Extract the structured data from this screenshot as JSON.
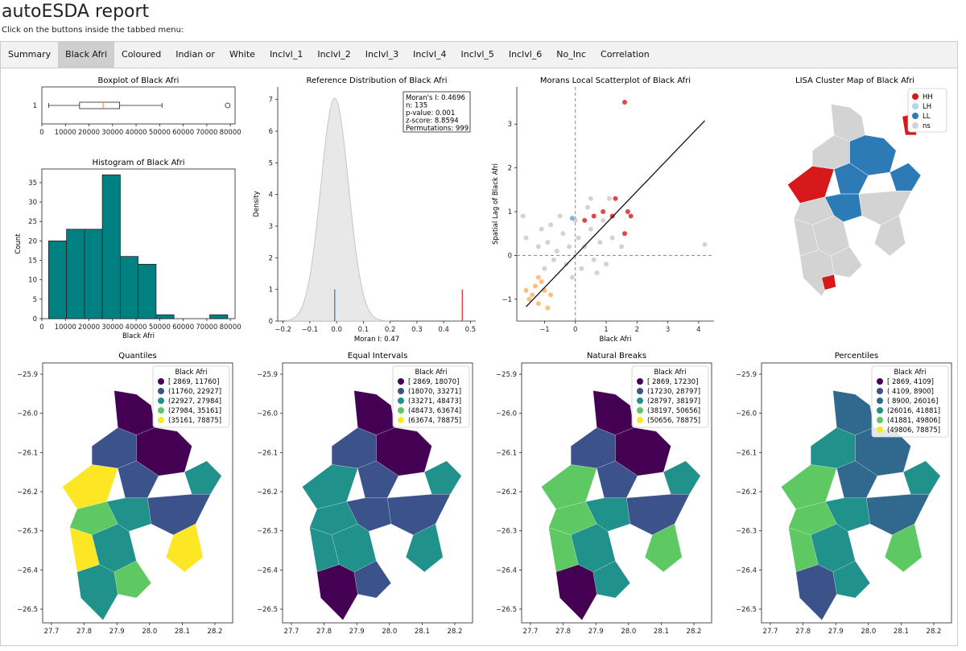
{
  "page": {
    "title": "autoESDA report",
    "subtitle": "Click on the buttons inside the tabbed menu:"
  },
  "tabs": [
    {
      "label": "Summary",
      "active": false
    },
    {
      "label": "Black Afri",
      "active": true
    },
    {
      "label": "Coloured",
      "active": false
    },
    {
      "label": "Indian or",
      "active": false
    },
    {
      "label": "White",
      "active": false
    },
    {
      "label": "Inclvl_1",
      "active": false
    },
    {
      "label": "Inclvl_2",
      "active": false
    },
    {
      "label": "Inclvl_3",
      "active": false
    },
    {
      "label": "Inclvl_4",
      "active": false
    },
    {
      "label": "Inclvl_5",
      "active": false
    },
    {
      "label": "Inclvl_6",
      "active": false
    },
    {
      "label": "No_Inc",
      "active": false
    },
    {
      "label": "Correlation",
      "active": false
    }
  ],
  "colors": {
    "teal": "#008080",
    "hh": "#d7191c",
    "lh": "#abd9e9",
    "ll": "#2c7bb6",
    "ns": "#d3d3d3",
    "viridis": [
      "#440154",
      "#3b528b",
      "#21918c",
      "#5ec962",
      "#fde725"
    ]
  },
  "chart_data": [
    {
      "type": "boxplot",
      "title": "Boxplot of Black Afri",
      "ytick": "1",
      "xticks": [
        "0",
        "10000",
        "20000",
        "30000",
        "40000",
        "50000",
        "60000",
        "70000",
        "80000"
      ],
      "xlim": [
        0,
        82000
      ],
      "stats": {
        "min": 2869,
        "q1": 16000,
        "median": 26000,
        "q3": 33000,
        "max": 51000,
        "outliers": [
          78875
        ]
      }
    },
    {
      "type": "histogram",
      "title": "Histogram of Black Afri",
      "xlabel": "Black Afri",
      "ylabel": "Count",
      "xticks": [
        "0",
        "10000",
        "20000",
        "30000",
        "40000",
        "50000",
        "60000",
        "70000",
        "80000"
      ],
      "yticks": [
        "0",
        "5",
        "10",
        "15",
        "20",
        "25",
        "30",
        "35"
      ],
      "xlim": [
        0,
        82000
      ],
      "ylim": [
        0,
        38.5
      ],
      "bins": [
        2869,
        10470,
        18070,
        25671,
        33271,
        40872,
        48473,
        56073,
        63674,
        71274,
        78875
      ],
      "counts": [
        20,
        23,
        23,
        37,
        16,
        14,
        1,
        0,
        0,
        1
      ]
    },
    {
      "type": "kde",
      "title": "Reference Distribution of Black Afri",
      "xlabel": "Moran I: 0.47",
      "ylabel": "Density",
      "xticks": [
        "−0.2",
        "−0.1",
        "0.0",
        "0.1",
        "0.2",
        "0.3",
        "0.4",
        "0.5"
      ],
      "yticks": [
        "0",
        "1",
        "2",
        "3",
        "4",
        "5",
        "6",
        "7"
      ],
      "xlim": [
        -0.22,
        0.52
      ],
      "ylim": [
        0,
        7.4
      ],
      "peak": 7.05,
      "sim_mean": -0.007,
      "observed": 0.4696,
      "stats_box": [
        "Moran's I: 0.4696",
        "n: 135",
        "p-value: 0.001",
        "z-score: 8.8594",
        "Permutations: 999"
      ]
    },
    {
      "type": "scatter",
      "title": "Morans Local Scatterplot of Black Afri",
      "xlabel": "Black Afri",
      "ylabel": "Spatial Lag of Black Afri",
      "xticks": [
        "−1",
        "0",
        "1",
        "2",
        "3",
        "4"
      ],
      "xtick_values": [
        -1,
        0,
        1,
        2,
        3,
        4
      ],
      "yticks": [
        "−1",
        "0",
        "1",
        "2",
        "3"
      ],
      "ytick_values": [
        -1,
        0,
        1,
        2,
        3
      ],
      "xlim": [
        -1.9,
        4.5
      ],
      "ylim": [
        -1.5,
        3.85
      ],
      "slope": 0.47,
      "points_ns": [
        [
          -0.9,
          0.3
        ],
        [
          -0.6,
          0.1
        ],
        [
          -0.4,
          0.5
        ],
        [
          -0.2,
          0.2
        ],
        [
          0.1,
          0.4
        ],
        [
          0.3,
          0.2
        ],
        [
          0.5,
          0.6
        ],
        [
          0.8,
          0.3
        ],
        [
          1.2,
          0.4
        ],
        [
          -0.3,
          -0.2
        ],
        [
          0.2,
          -0.3
        ],
        [
          0.6,
          -0.1
        ],
        [
          1.0,
          -0.2
        ],
        [
          -1.2,
          0.2
        ],
        [
          -1.6,
          0.4
        ],
        [
          -1.1,
          0.6
        ],
        [
          -0.7,
          -0.1
        ],
        [
          0.0,
          0.8
        ],
        [
          0.4,
          1.1
        ],
        [
          0.9,
          0.8
        ],
        [
          1.1,
          1.3
        ],
        [
          -0.5,
          0.9
        ],
        [
          4.2,
          0.25
        ],
        [
          -1.7,
          0.9
        ],
        [
          -1.0,
          -0.3
        ],
        [
          -0.8,
          0.7
        ],
        [
          0.7,
          -0.4
        ],
        [
          1.5,
          0.2
        ],
        [
          -0.1,
          -0.5
        ],
        [
          0.5,
          1.3
        ]
      ],
      "points_hh": [
        [
          1.6,
          3.5
        ],
        [
          0.6,
          0.9
        ],
        [
          0.9,
          1.0
        ],
        [
          1.2,
          0.9
        ],
        [
          1.7,
          1.0
        ],
        [
          1.6,
          0.5
        ],
        [
          1.3,
          1.3
        ],
        [
          0.3,
          0.8
        ],
        [
          1.8,
          0.9
        ]
      ],
      "points_ll": [
        [
          -1.4,
          -0.9
        ],
        [
          -1.2,
          -1.1
        ],
        [
          -1.0,
          -0.8
        ],
        [
          -1.5,
          -1.0
        ],
        [
          -0.9,
          -1.2
        ],
        [
          -1.3,
          -0.7
        ],
        [
          -1.1,
          -0.6
        ],
        [
          -0.8,
          -0.9
        ],
        [
          -1.6,
          -0.8
        ],
        [
          -1.2,
          -0.5
        ]
      ],
      "points_lh": [
        [
          -0.1,
          0.85
        ]
      ]
    }
  ],
  "lisa_map": {
    "title": "LISA Cluster Map of Black Afri",
    "legend": [
      {
        "key": "hh",
        "label": "HH"
      },
      {
        "key": "lh",
        "label": "LH"
      },
      {
        "key": "ll",
        "label": "LL"
      },
      {
        "key": "ns",
        "label": "ns"
      }
    ]
  },
  "choropleths": [
    {
      "title": "Quantiles",
      "legend_title": "Black Afri",
      "classes": [
        "[ 2869, 11760]",
        "(11760, 22927]",
        "(22927, 27984]",
        "(27984, 35161]",
        "(35161, 78875]"
      ],
      "palette": [
        "#440154",
        "#3b528b",
        "#21918c",
        "#5ec962",
        "#fde725"
      ],
      "fills": [
        0,
        0,
        1,
        2,
        4,
        1,
        3,
        2,
        4,
        2,
        1,
        4,
        3,
        2
      ]
    },
    {
      "title": "Equal Intervals",
      "legend_title": "Black Afri",
      "classes": [
        "[ 2869, 18070]",
        "(18070, 33271]",
        "(33271, 48473]",
        "(48473, 63674]",
        "(63674, 78875]"
      ],
      "palette": [
        "#440154",
        "#3b528b",
        "#21918c",
        "#5ec962",
        "#fde725"
      ],
      "fills": [
        0,
        0,
        1,
        2,
        2,
        1,
        2,
        1,
        2,
        2,
        1,
        2,
        1,
        0
      ]
    },
    {
      "title": "Natural Breaks",
      "legend_title": "Black Afri",
      "classes": [
        "[ 2869, 17230]",
        "(17230, 28797]",
        "(28797, 38197]",
        "(38197, 50656]",
        "(50656, 78875]"
      ],
      "palette": [
        "#440154",
        "#3b528b",
        "#21918c",
        "#5ec962",
        "#fde725"
      ],
      "fills": [
        0,
        0,
        1,
        2,
        3,
        1,
        3,
        2,
        3,
        2,
        1,
        3,
        2,
        0
      ]
    },
    {
      "title": "Percentiles",
      "legend_title": "Black Afri",
      "classes": [
        "[ 2869, 4109]",
        "( 4109, 8900]",
        "( 8900, 26016]",
        "(26016, 41881]",
        "(41881, 49806]",
        "(49806, 78875]"
      ],
      "palette": [
        "#440154",
        "#3b528b",
        "#31688e",
        "#21918c",
        "#5ec962",
        "#fde725"
      ],
      "fills": [
        2,
        2,
        3,
        3,
        4,
        2,
        4,
        3,
        4,
        3,
        2,
        4,
        3,
        1
      ]
    }
  ],
  "map_axes": {
    "yticks": [
      "−25.9",
      "−26.0",
      "−26.1",
      "−26.2",
      "−26.3",
      "−26.4",
      "−26.5"
    ],
    "xticks": [
      "27.7",
      "27.8",
      "27.9",
      "28.0",
      "28.1",
      "28.2"
    ]
  }
}
